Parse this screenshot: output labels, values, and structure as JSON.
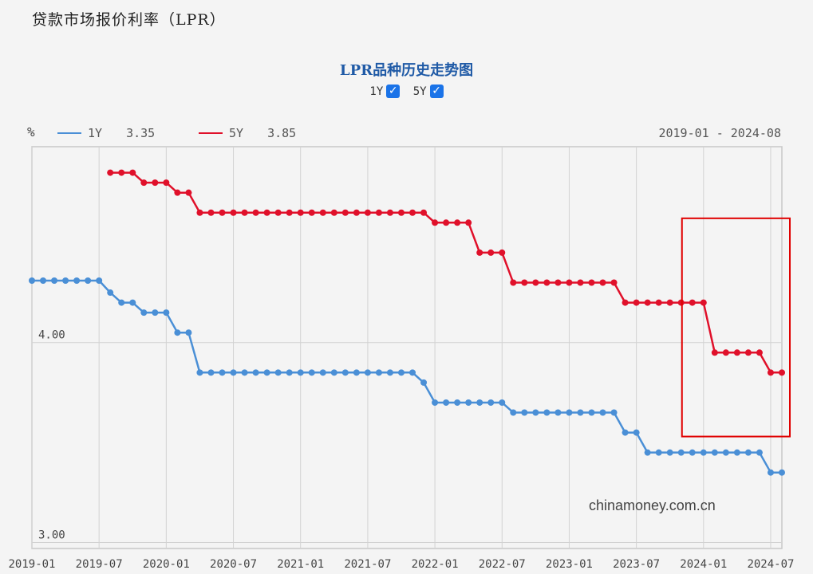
{
  "header": {
    "title": "贷款市场报价利率（LPR）"
  },
  "chart_title": "LPR品种历史走势图",
  "toggles": [
    {
      "label": "1Y",
      "checked": true
    },
    {
      "label": "5Y",
      "checked": true
    }
  ],
  "unit": "%",
  "legend": [
    {
      "name": "1Y",
      "value": "3.35",
      "color": "#4a8fd6"
    },
    {
      "name": "5Y",
      "value": "3.85",
      "color": "#e0102a"
    }
  ],
  "date_range": "2019-01 - 2024-08",
  "watermark": "chinamoney.com.cn",
  "chart_data": {
    "type": "line",
    "x_ticks": [
      "2019-01",
      "2019-07",
      "2020-01",
      "2020-07",
      "2021-01",
      "2021-07",
      "2022-01",
      "2022-07",
      "2023-01",
      "2023-07",
      "2024-01",
      "2024-07"
    ],
    "y_ticks": [
      {
        "value": 4.0,
        "label": "4.00"
      },
      {
        "value": 3.0,
        "label": "3.00"
      }
    ],
    "ylim": [
      2.97,
      4.98
    ],
    "series": [
      {
        "name": "1Y",
        "color": "#4a8fd6",
        "points": [
          [
            "2019-01",
            4.31
          ],
          [
            "2019-02",
            4.31
          ],
          [
            "2019-03",
            4.31
          ],
          [
            "2019-04",
            4.31
          ],
          [
            "2019-05",
            4.31
          ],
          [
            "2019-06",
            4.31
          ],
          [
            "2019-07",
            4.31
          ],
          [
            "2019-08",
            4.25
          ],
          [
            "2019-09",
            4.2
          ],
          [
            "2019-10",
            4.2
          ],
          [
            "2019-11",
            4.15
          ],
          [
            "2019-12",
            4.15
          ],
          [
            "2020-01",
            4.15
          ],
          [
            "2020-02",
            4.05
          ],
          [
            "2020-03",
            4.05
          ],
          [
            "2020-04",
            3.85
          ],
          [
            "2020-05",
            3.85
          ],
          [
            "2020-06",
            3.85
          ],
          [
            "2020-07",
            3.85
          ],
          [
            "2020-08",
            3.85
          ],
          [
            "2020-09",
            3.85
          ],
          [
            "2020-10",
            3.85
          ],
          [
            "2020-11",
            3.85
          ],
          [
            "2020-12",
            3.85
          ],
          [
            "2021-01",
            3.85
          ],
          [
            "2021-02",
            3.85
          ],
          [
            "2021-03",
            3.85
          ],
          [
            "2021-04",
            3.85
          ],
          [
            "2021-05",
            3.85
          ],
          [
            "2021-06",
            3.85
          ],
          [
            "2021-07",
            3.85
          ],
          [
            "2021-08",
            3.85
          ],
          [
            "2021-09",
            3.85
          ],
          [
            "2021-10",
            3.85
          ],
          [
            "2021-11",
            3.85
          ],
          [
            "2021-12",
            3.8
          ],
          [
            "2022-01",
            3.7
          ],
          [
            "2022-02",
            3.7
          ],
          [
            "2022-03",
            3.7
          ],
          [
            "2022-04",
            3.7
          ],
          [
            "2022-05",
            3.7
          ],
          [
            "2022-06",
            3.7
          ],
          [
            "2022-07",
            3.7
          ],
          [
            "2022-08",
            3.65
          ],
          [
            "2022-09",
            3.65
          ],
          [
            "2022-10",
            3.65
          ],
          [
            "2022-11",
            3.65
          ],
          [
            "2022-12",
            3.65
          ],
          [
            "2023-01",
            3.65
          ],
          [
            "2023-02",
            3.65
          ],
          [
            "2023-03",
            3.65
          ],
          [
            "2023-04",
            3.65
          ],
          [
            "2023-05",
            3.65
          ],
          [
            "2023-06",
            3.55
          ],
          [
            "2023-07",
            3.55
          ],
          [
            "2023-08",
            3.45
          ],
          [
            "2023-09",
            3.45
          ],
          [
            "2023-10",
            3.45
          ],
          [
            "2023-11",
            3.45
          ],
          [
            "2023-12",
            3.45
          ],
          [
            "2024-01",
            3.45
          ],
          [
            "2024-02",
            3.45
          ],
          [
            "2024-03",
            3.45
          ],
          [
            "2024-04",
            3.45
          ],
          [
            "2024-05",
            3.45
          ],
          [
            "2024-06",
            3.45
          ],
          [
            "2024-07",
            3.35
          ],
          [
            "2024-08",
            3.35
          ]
        ]
      },
      {
        "name": "5Y",
        "color": "#e0102a",
        "points": [
          [
            "2019-08",
            4.85
          ],
          [
            "2019-09",
            4.85
          ],
          [
            "2019-10",
            4.85
          ],
          [
            "2019-11",
            4.8
          ],
          [
            "2019-12",
            4.8
          ],
          [
            "2020-01",
            4.8
          ],
          [
            "2020-02",
            4.75
          ],
          [
            "2020-03",
            4.75
          ],
          [
            "2020-04",
            4.65
          ],
          [
            "2020-05",
            4.65
          ],
          [
            "2020-06",
            4.65
          ],
          [
            "2020-07",
            4.65
          ],
          [
            "2020-08",
            4.65
          ],
          [
            "2020-09",
            4.65
          ],
          [
            "2020-10",
            4.65
          ],
          [
            "2020-11",
            4.65
          ],
          [
            "2020-12",
            4.65
          ],
          [
            "2021-01",
            4.65
          ],
          [
            "2021-02",
            4.65
          ],
          [
            "2021-03",
            4.65
          ],
          [
            "2021-04",
            4.65
          ],
          [
            "2021-05",
            4.65
          ],
          [
            "2021-06",
            4.65
          ],
          [
            "2021-07",
            4.65
          ],
          [
            "2021-08",
            4.65
          ],
          [
            "2021-09",
            4.65
          ],
          [
            "2021-10",
            4.65
          ],
          [
            "2021-11",
            4.65
          ],
          [
            "2021-12",
            4.65
          ],
          [
            "2022-01",
            4.6
          ],
          [
            "2022-02",
            4.6
          ],
          [
            "2022-03",
            4.6
          ],
          [
            "2022-04",
            4.6
          ],
          [
            "2022-05",
            4.45
          ],
          [
            "2022-06",
            4.45
          ],
          [
            "2022-07",
            4.45
          ],
          [
            "2022-08",
            4.3
          ],
          [
            "2022-09",
            4.3
          ],
          [
            "2022-10",
            4.3
          ],
          [
            "2022-11",
            4.3
          ],
          [
            "2022-12",
            4.3
          ],
          [
            "2023-01",
            4.3
          ],
          [
            "2023-02",
            4.3
          ],
          [
            "2023-03",
            4.3
          ],
          [
            "2023-04",
            4.3
          ],
          [
            "2023-05",
            4.3
          ],
          [
            "2023-06",
            4.2
          ],
          [
            "2023-07",
            4.2
          ],
          [
            "2023-08",
            4.2
          ],
          [
            "2023-09",
            4.2
          ],
          [
            "2023-10",
            4.2
          ],
          [
            "2023-11",
            4.2
          ],
          [
            "2023-12",
            4.2
          ],
          [
            "2024-01",
            4.2
          ],
          [
            "2024-02",
            3.95
          ],
          [
            "2024-03",
            3.95
          ],
          [
            "2024-04",
            3.95
          ],
          [
            "2024-05",
            3.95
          ],
          [
            "2024-06",
            3.95
          ],
          [
            "2024-07",
            3.85
          ],
          [
            "2024-08",
            3.85
          ]
        ]
      }
    ],
    "highlight": {
      "x_start": "2023-12",
      "x_end": "2024-08",
      "y_top": 4.55,
      "y_bottom": 3.55,
      "color": "#e00000"
    }
  }
}
